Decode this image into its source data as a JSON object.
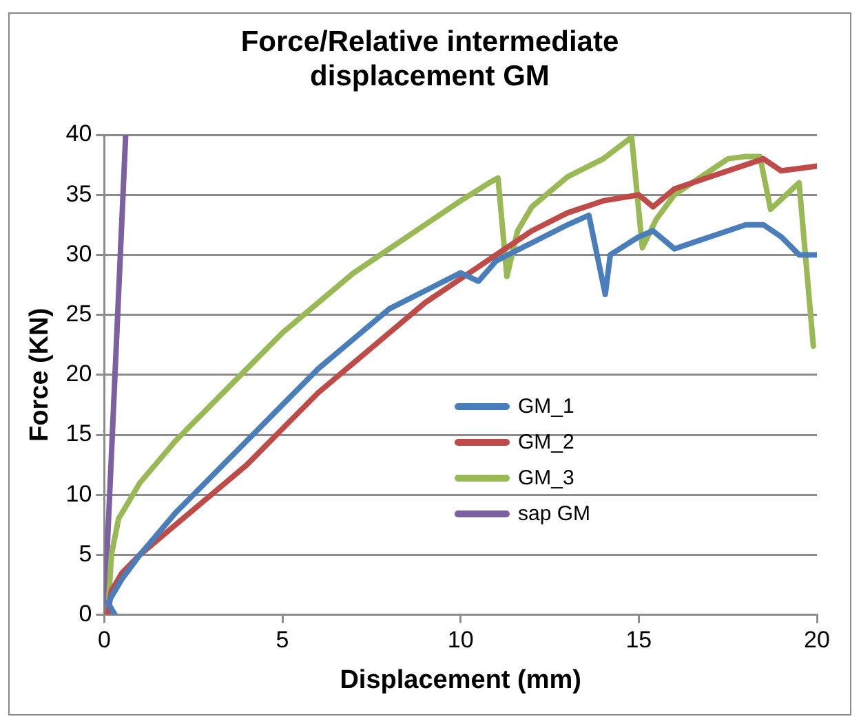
{
  "chart_data": {
    "type": "line",
    "title": "Force/Relative intermediate displacement GM",
    "xlabel": "Displacement (mm)",
    "ylabel": "Force (KN)",
    "xlim": [
      0,
      20
    ],
    "xticks": [
      0,
      5,
      10,
      15,
      20
    ],
    "ylim": [
      0,
      40
    ],
    "yticks": [
      0,
      5,
      10,
      15,
      20,
      25,
      30,
      35,
      40
    ],
    "grid": "y",
    "legend": "right",
    "marker": "none",
    "line_style": "solid",
    "series": [
      {
        "name": "GM_1",
        "color": "#4a7ebb",
        "x": [
          0.2,
          0.3,
          0.1,
          0.5,
          1,
          2,
          3,
          4,
          5,
          6,
          7,
          8,
          9,
          10,
          10.5,
          11,
          12,
          13,
          13.6,
          14.06,
          14.2,
          15,
          15.4,
          16,
          17,
          18,
          18.5,
          19,
          19.5,
          20
        ],
        "values": [
          0.5,
          0,
          1,
          3,
          5,
          8.5,
          11.5,
          14.5,
          17.5,
          20.5,
          23,
          25.5,
          27,
          28.5,
          27.8,
          29.5,
          31,
          32.5,
          33.3,
          26.7,
          30,
          31.5,
          32,
          30.5,
          31.5,
          32.5,
          32.5,
          31.5,
          30,
          30
        ]
      },
      {
        "name": "GM_2",
        "color": "#be4b48",
        "x": [
          0.1,
          0.2,
          0.5,
          1,
          2,
          3,
          4,
          5,
          6,
          7,
          8,
          9,
          10,
          11,
          12,
          13,
          14,
          15,
          15.4,
          16,
          17,
          18,
          18.5,
          19,
          20
        ],
        "values": [
          0,
          2,
          3.5,
          5,
          7.5,
          10,
          12.5,
          15.5,
          18.5,
          21,
          23.5,
          26,
          28,
          30,
          32,
          33.5,
          34.5,
          35,
          34,
          35.5,
          36.5,
          37.5,
          38,
          37,
          37.4
        ]
      },
      {
        "name": "GM_3",
        "color": "#98b954",
        "x": [
          0.1,
          0.2,
          0.4,
          1,
          2,
          3,
          4,
          5,
          6,
          7,
          8,
          9,
          10,
          10.8,
          11.05,
          11.3,
          11.6,
          12,
          13,
          14,
          14.8,
          15.1,
          15.5,
          16,
          17,
          17.5,
          18,
          18.4,
          18.7,
          19.5,
          19.9
        ],
        "values": [
          0,
          5,
          8,
          11,
          14.5,
          17.5,
          20.5,
          23.5,
          26,
          28.5,
          30.5,
          32.5,
          34.5,
          36,
          36.4,
          28.2,
          32,
          34,
          36.5,
          38,
          39.8,
          30.6,
          33,
          35,
          37,
          38,
          38.2,
          38.2,
          33.8,
          36,
          22.4
        ]
      },
      {
        "name": "sap GM",
        "color": "#7d60a0",
        "x": [
          0,
          0.6
        ],
        "values": [
          0,
          40
        ]
      }
    ]
  }
}
